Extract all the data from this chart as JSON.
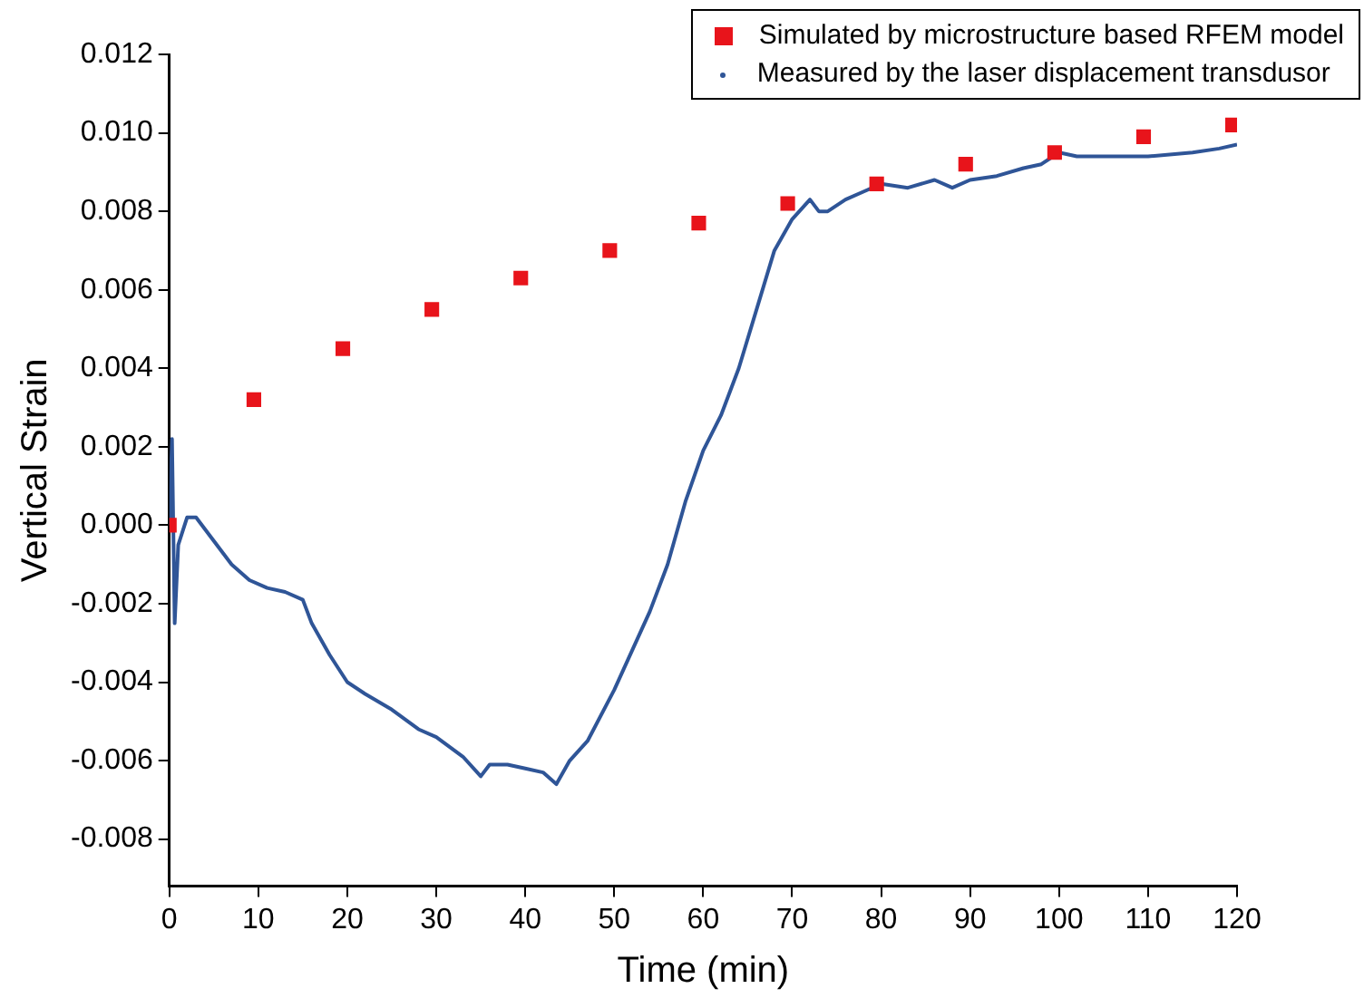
{
  "chart_data": {
    "type": "scatter",
    "xlabel": "Time (min)",
    "ylabel": "Vertical Strain",
    "xlim": [
      0,
      120
    ],
    "xticks": [
      0,
      10,
      20,
      30,
      40,
      50,
      60,
      70,
      80,
      90,
      100,
      110,
      120
    ],
    "ylim": [
      -0.0092,
      0.012
    ],
    "yticks": [
      -0.008,
      -0.006,
      -0.004,
      -0.002,
      {
        "value": 0,
        "label": "0.000"
      },
      0.002,
      0.004,
      0.006,
      0.008,
      {
        "value": 0.01,
        "label": "0.010"
      },
      0.012
    ],
    "grid": false,
    "legend": "top right",
    "series": [
      {
        "name": "Simulated by microstructure based RFEM model",
        "type": "scatter",
        "marker": "square",
        "color": "#e8141b",
        "x": [
          0,
          9.5,
          19.5,
          29.5,
          39.5,
          49.5,
          59.5,
          69.5,
          79.5,
          89.5,
          99.5,
          109.5,
          119.5
        ],
        "values": [
          0,
          0.0032,
          0.0045,
          0.0055,
          0.0063,
          0.007,
          0.0077,
          0.0082,
          0.0087,
          0.0092,
          0.0095,
          0.0099,
          0.0102
        ]
      },
      {
        "name": "Measured by the laser displacement transdusor",
        "type": "line",
        "marker": "none",
        "line_style": "solid",
        "color": "#2f5597",
        "x": [
          0,
          0.3,
          0.6,
          1,
          2,
          3,
          5,
          7,
          9,
          11,
          13,
          15,
          16,
          18,
          20,
          22,
          25,
          28,
          30,
          33,
          35,
          36,
          38,
          40,
          42,
          43.5,
          45,
          47,
          50,
          52,
          54,
          56,
          58,
          60,
          62,
          64,
          66,
          68,
          70,
          72,
          73,
          74,
          76,
          78,
          80,
          83,
          86,
          88,
          90,
          93,
          96,
          98,
          100,
          102,
          105,
          110,
          115,
          118,
          120
        ],
        "values": [
          0,
          0.0022,
          -0.0025,
          -0.0005,
          0.0002,
          0.0002,
          -0.0004,
          -0.001,
          -0.0014,
          -0.0016,
          -0.0017,
          -0.0019,
          -0.0025,
          -0.0033,
          -0.004,
          -0.0043,
          -0.0047,
          -0.0052,
          -0.0054,
          -0.0059,
          -0.0064,
          -0.0061,
          -0.0061,
          -0.0062,
          -0.0063,
          -0.0066,
          -0.006,
          -0.0055,
          -0.0042,
          -0.0032,
          -0.0022,
          -0.001,
          0.0006,
          0.0019,
          0.0028,
          0.004,
          0.0055,
          0.007,
          0.0078,
          0.0083,
          0.008,
          0.008,
          0.0083,
          0.0085,
          0.0087,
          0.0086,
          0.0088,
          0.0086,
          0.0088,
          0.0089,
          0.0091,
          0.0092,
          0.0095,
          0.0094,
          0.0094,
          0.0094,
          0.0095,
          0.0096,
          0.0097
        ]
      }
    ]
  }
}
